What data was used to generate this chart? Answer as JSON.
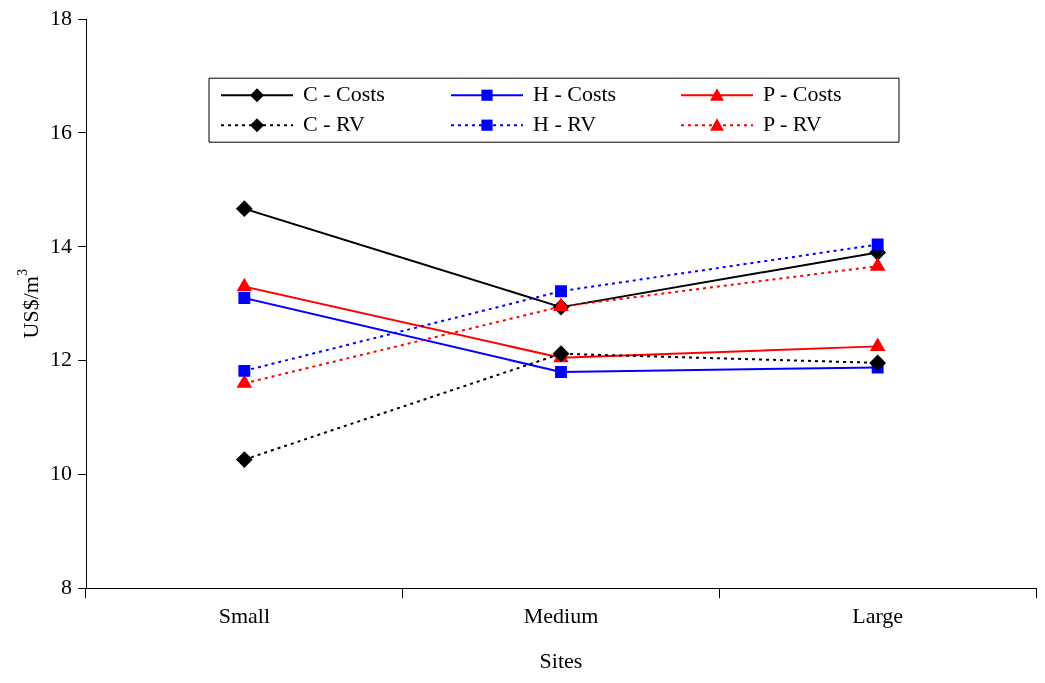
{
  "chart_data": {
    "type": "line",
    "xlabel": "Sites",
    "ylabel": "US$/m$^{3}$",
    "categories": [
      "Small",
      "Medium",
      "Large"
    ],
    "ylim": [
      8,
      18
    ],
    "yticks": [
      8,
      10,
      12,
      14,
      16,
      18
    ],
    "grid": false,
    "legend": "top",
    "series": [
      {
        "name": "C - Costs",
        "color": "#000000",
        "marker": "diamond",
        "line_style": "solid",
        "values": [
          14.67,
          12.94,
          13.9
        ]
      },
      {
        "name": "H - Costs",
        "color": "#0000ff",
        "marker": "square",
        "line_style": "solid",
        "values": [
          13.1,
          11.8,
          11.88
        ]
      },
      {
        "name": "P - Costs",
        "color": "#ff0000",
        "marker": "triangle",
        "line_style": "solid",
        "values": [
          13.3,
          12.05,
          12.25
        ]
      },
      {
        "name": "C - RV",
        "color": "#000000",
        "marker": "diamond",
        "line_style": "dotted",
        "values": [
          10.26,
          12.12,
          11.96
        ]
      },
      {
        "name": "H - RV",
        "color": "#0000ff",
        "marker": "square",
        "line_style": "dotted",
        "values": [
          11.82,
          13.22,
          14.04
        ]
      },
      {
        "name": "P - RV",
        "color": "#ff0000",
        "marker": "triangle",
        "line_style": "dotted",
        "values": [
          11.6,
          12.95,
          13.66
        ]
      }
    ]
  }
}
